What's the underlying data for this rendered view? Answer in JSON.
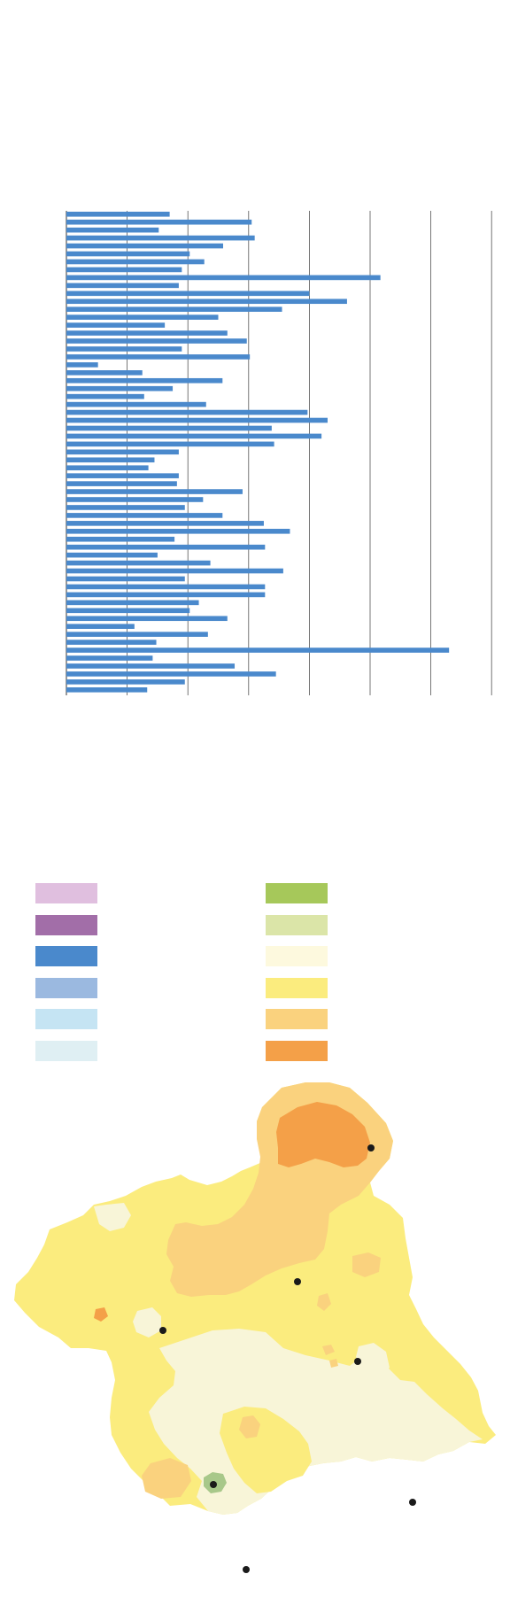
{
  "chart_data": {
    "type": "bar",
    "orientation": "horizontal",
    "title": "",
    "xlabel": "",
    "ylabel": "",
    "xlim": [
      0,
      7
    ],
    "grid": true,
    "values": [
      1.7,
      3.05,
      1.52,
      3.1,
      2.58,
      2.03,
      2.27,
      1.9,
      5.17,
      1.85,
      4.0,
      4.62,
      3.55,
      2.5,
      1.62,
      2.65,
      2.97,
      1.9,
      3.02,
      0.52,
      1.25,
      2.57,
      1.75,
      1.28,
      2.3,
      3.97,
      4.3,
      3.38,
      4.2,
      3.42,
      1.85,
      1.45,
      1.35,
      1.85,
      1.82,
      2.9,
      2.25,
      1.95,
      2.57,
      3.25,
      3.68,
      1.78,
      3.27,
      1.5,
      2.37,
      3.57,
      1.95,
      3.27,
      3.27,
      2.18,
      2.03,
      2.65,
      1.12,
      2.33,
      1.48,
      6.3,
      1.42,
      2.77,
      3.45,
      1.95,
      1.33
    ],
    "bar_color": "#4a89cc",
    "grid_color": "#555555"
  },
  "legend": {
    "colors_left": [
      "#e0bfdf",
      "#a26ea8",
      "#4a89cc",
      "#9bb9e0",
      "#c5e4f3",
      "#dfeff3"
    ],
    "colors_right": [
      "#a6c85a",
      "#dbe5a8",
      "#fdf9de",
      "#fbec7e",
      "#fad27e",
      "#f4a048"
    ]
  },
  "map": {
    "zone_colors": {
      "base": "#fbec7e",
      "light": "#f8f5d8",
      "orange_light": "#fad27e",
      "orange_dark": "#f4a048",
      "green": "#a8c88a"
    },
    "marker_color": "#1a1a1a"
  }
}
